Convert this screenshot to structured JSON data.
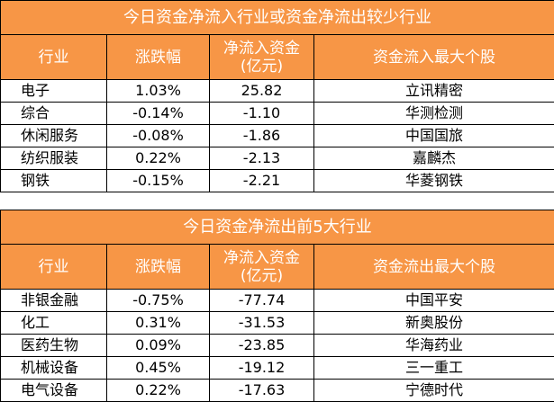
{
  "tables": [
    {
      "title": "今日资金净流入行业或资金净流出较少行业",
      "header": [
        "行业",
        "涨跌幅",
        "净流入资金\n(亿元)",
        "资金流入最大个股"
      ],
      "rows": [
        [
          "电子",
          "1.03%",
          "25.82",
          "立讯精密"
        ],
        [
          "综合",
          "-0.14%",
          "-1.10",
          "华测检测"
        ],
        [
          "休闲服务",
          "-0.08%",
          "-1.86",
          "中国国旅"
        ],
        [
          "纺织服装",
          "0.22%",
          "-2.13",
          "嘉麟杰"
        ],
        [
          "钢铁",
          "-0.15%",
          "-2.21",
          "华菱钢铁"
        ]
      ]
    },
    {
      "title": "今日资金净流出前5大行业",
      "header": [
        "行业",
        "涨跌幅",
        "净流入资金\n(亿元)",
        "资金流出最大个股"
      ],
      "rows": [
        [
          "非银金融",
          "-0.75%",
          "-77.74",
          "中国平安"
        ],
        [
          "化工",
          "0.31%",
          "-31.53",
          "新奥股份"
        ],
        [
          "医药生物",
          "0.09%",
          "-23.85",
          "华海药业"
        ],
        [
          "机械设备",
          "0.45%",
          "-19.12",
          "三一重工"
        ],
        [
          "电气设备",
          "0.22%",
          "-17.63",
          "宁德时代"
        ]
      ]
    }
  ]
}
